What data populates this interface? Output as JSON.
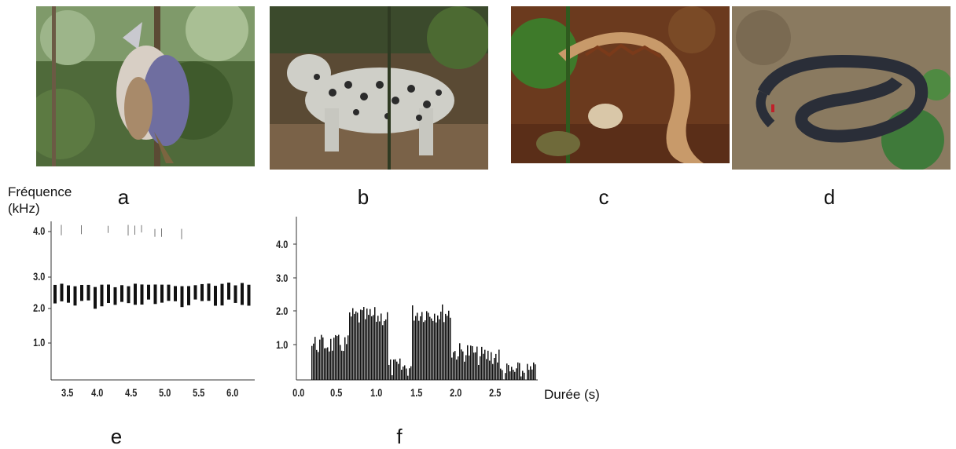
{
  "figure": {
    "panels": [
      {
        "id": "a",
        "label": "a",
        "subject": "crowned-eagle-model"
      },
      {
        "id": "b",
        "label": "b",
        "subject": "leopard-model"
      },
      {
        "id": "c",
        "label": "c",
        "subject": "gaboon-viper"
      },
      {
        "id": "d",
        "label": "d",
        "subject": "black-snake"
      },
      {
        "id": "e",
        "label": "e",
        "subject": "spectrogram-1"
      },
      {
        "id": "f",
        "label": "f",
        "subject": "spectrogram-2"
      }
    ]
  },
  "spectrogram_e": {
    "ylabel_line1": "Fréquence",
    "ylabel_line2": "(kHz)",
    "yticks": [
      "4.0",
      "3.0",
      "2.0",
      "1.0"
    ],
    "xticks": [
      "3.5",
      "4.0",
      "4.5",
      "5.0",
      "5.5",
      "6.0"
    ]
  },
  "spectrogram_f": {
    "yticks": [
      "4.0",
      "3.0",
      "2.0",
      "1.0"
    ],
    "xticks": [
      "0.0",
      "0.5",
      "1.0",
      "1.5",
      "2.0",
      "2.5"
    ],
    "xlabel": "Durée (s)"
  }
}
